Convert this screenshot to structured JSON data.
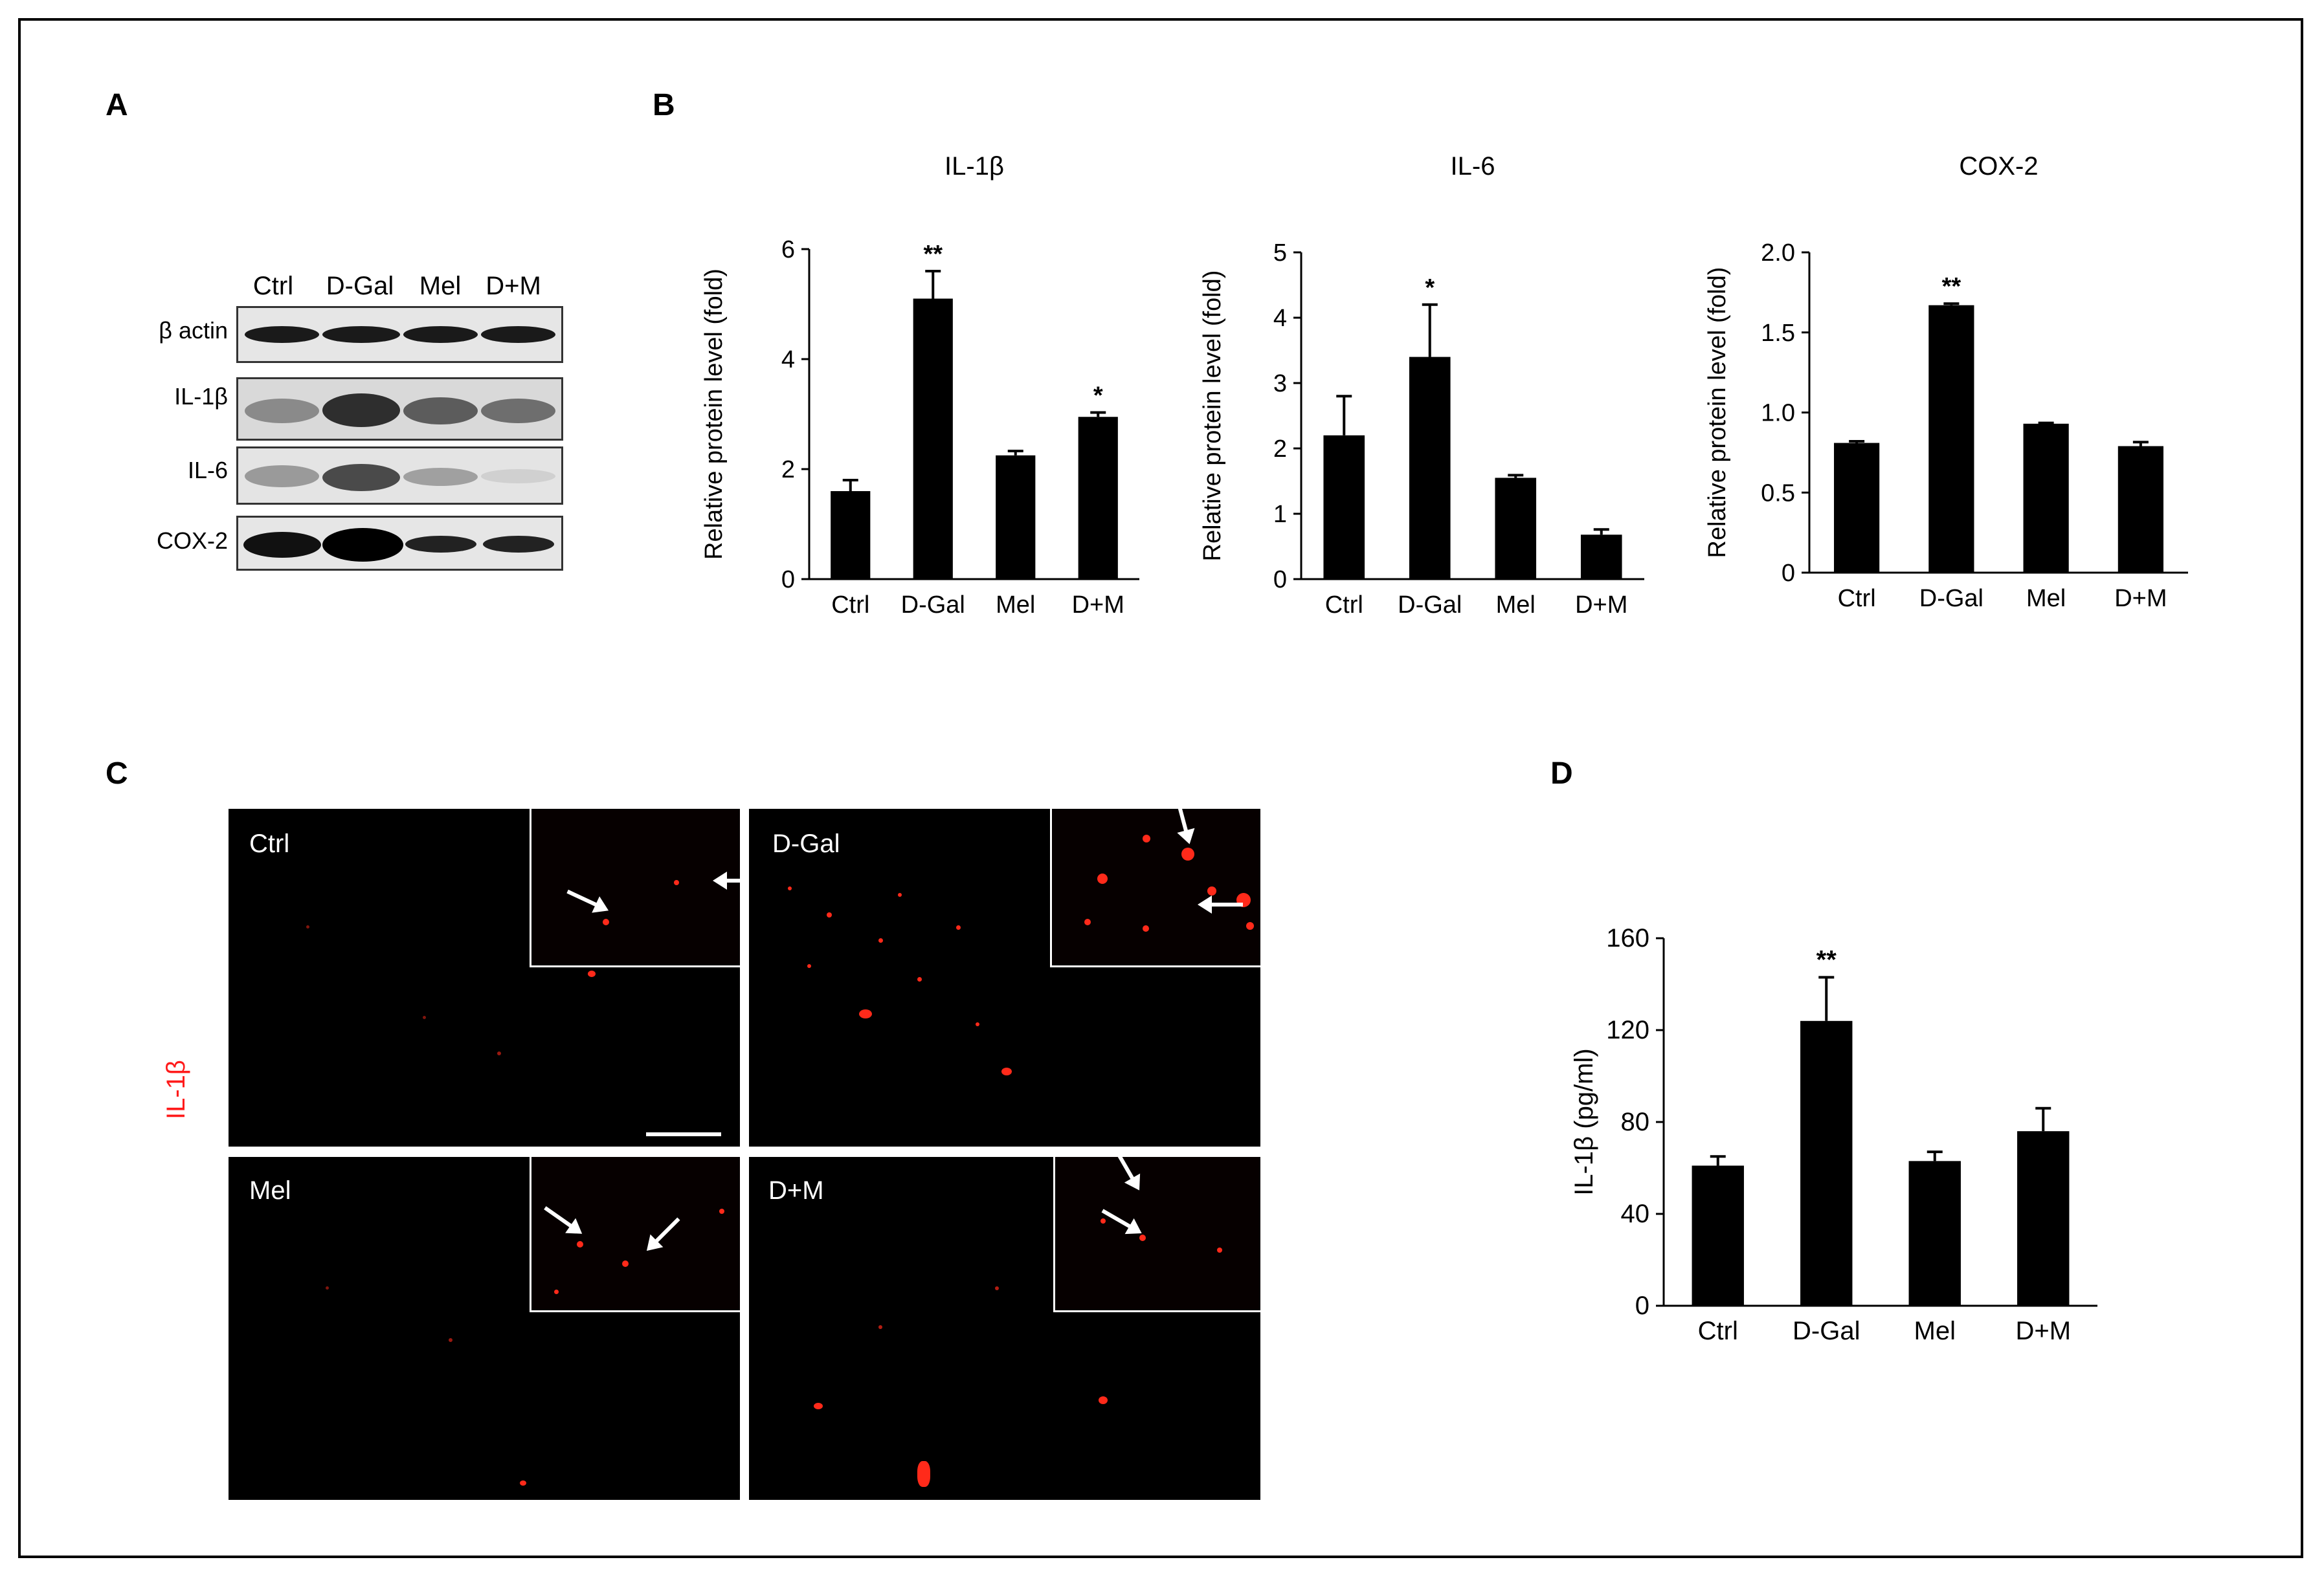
{
  "panels": {
    "A": "A",
    "B": "B",
    "C": "C",
    "D": "D"
  },
  "blot": {
    "lanes": [
      "Ctrl",
      "D-Gal",
      "Mel",
      "D+M"
    ],
    "rows": [
      "β actin",
      "IL-1β",
      "IL-6",
      "COX-2"
    ]
  },
  "micro": {
    "side_label": "IL-1β",
    "label_color": "#ff1a1a",
    "tiles": [
      "Ctrl",
      "D-Gal",
      "Mel",
      "D+M"
    ]
  },
  "chart_data": [
    {
      "type": "bar",
      "title": "IL-1β",
      "ylabel": "Relative protein level (fold)",
      "categories": [
        "Ctrl",
        "D-Gal",
        "Mel",
        "D+M"
      ],
      "values": [
        1.6,
        5.1,
        2.25,
        2.95
      ],
      "errors": [
        0.2,
        0.5,
        0.08,
        0.08
      ],
      "annotations": [
        "",
        "**",
        "",
        "*"
      ],
      "ylim": [
        0,
        6
      ],
      "yticks": [
        "0",
        "2",
        "4",
        "6"
      ]
    },
    {
      "type": "bar",
      "title": "IL-6",
      "ylabel": "Relative protein level (fold)",
      "categories": [
        "Ctrl",
        "D-Gal",
        "Mel",
        "D+M"
      ],
      "values": [
        2.2,
        3.4,
        1.55,
        0.68
      ],
      "errors": [
        0.6,
        0.8,
        0.04,
        0.08
      ],
      "annotations": [
        "",
        "*",
        "",
        ""
      ],
      "ylim": [
        0,
        5
      ],
      "yticks": [
        "0",
        "1",
        "2",
        "3",
        "4",
        "5"
      ]
    },
    {
      "type": "bar",
      "title": "COX-2",
      "ylabel": "Relative protein level (fold)",
      "categories": [
        "Ctrl",
        "D-Gal",
        "Mel",
        "D+M"
      ],
      "values": [
        0.81,
        1.67,
        0.93,
        0.79
      ],
      "errors": [
        0.01,
        0.01,
        0.005,
        0.025
      ],
      "annotations": [
        "",
        "**",
        "",
        ""
      ],
      "ylim": [
        0,
        2.0
      ],
      "yticks": [
        "0",
        "0.5",
        "1.0",
        "1.5",
        "2.0"
      ]
    },
    {
      "type": "bar",
      "title": "",
      "ylabel": "IL-1β  (pg/ml)",
      "categories": [
        "Ctrl",
        "D-Gal",
        "Mel",
        "D+M"
      ],
      "values": [
        61,
        124,
        63,
        76
      ],
      "errors": [
        4,
        19,
        4,
        10
      ],
      "annotations": [
        "",
        "**",
        "",
        ""
      ],
      "ylim": [
        0,
        160
      ],
      "yticks": [
        "0",
        "40",
        "80",
        "120",
        "160"
      ]
    }
  ]
}
